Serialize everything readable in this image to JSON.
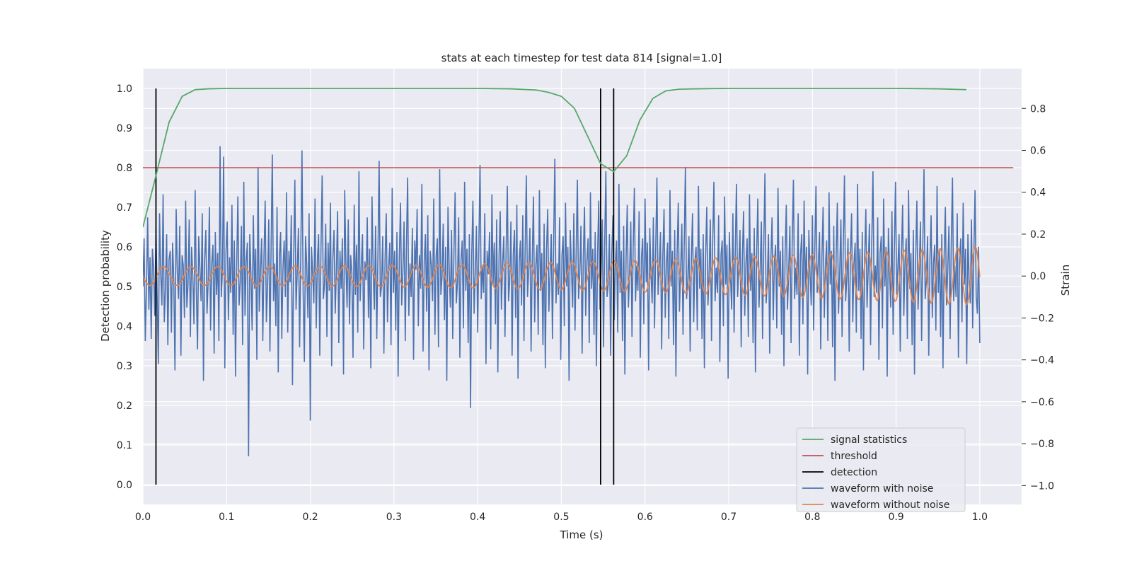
{
  "chart_data": {
    "type": "line",
    "title": "stats at each timestep for test data 814 [signal=1.0]",
    "xlabel": "Time (s)",
    "ylabel_left": "Detection probability",
    "ylabel_right": "Strain",
    "xlim": [
      0.0,
      1.05
    ],
    "ylim_left": [
      -0.05,
      1.05
    ],
    "ylim_right": [
      -1.09,
      0.99
    ],
    "x_ticks": [
      0.0,
      0.1,
      0.2,
      0.3,
      0.4,
      0.5,
      0.6,
      0.7,
      0.8,
      0.9,
      1.0
    ],
    "x_tick_labels": [
      "0.0",
      "0.1",
      "0.2",
      "0.3",
      "0.4",
      "0.5",
      "0.6",
      "0.7",
      "0.8",
      "0.9",
      "1.0"
    ],
    "y_left_ticks": [
      0.0,
      0.1,
      0.2,
      0.3,
      0.4,
      0.5,
      0.6,
      0.7,
      0.8,
      0.9,
      1.0
    ],
    "y_left_tick_labels": [
      "0.0",
      "0.1",
      "0.2",
      "0.3",
      "0.4",
      "0.5",
      "0.6",
      "0.7",
      "0.8",
      "0.9",
      "1.0"
    ],
    "y_right_ticks": [
      -1.0,
      -0.8,
      -0.6,
      -0.4,
      -0.2,
      0.0,
      0.2,
      0.4,
      0.6,
      0.8
    ],
    "y_right_tick_labels": [
      "−1.0",
      "−0.8",
      "−0.6",
      "−0.4",
      "−0.2",
      "0.0",
      "0.2",
      "0.4",
      "0.6",
      "0.8"
    ],
    "grid": true,
    "legend_position": "lower-right",
    "colors": {
      "background": "#eaeaf2",
      "grid": "#ffffff",
      "signal_statistics": "#55a868",
      "threshold": "#c44e52",
      "detection": "#000000",
      "waveform_noise": "#4c72b0",
      "waveform_clean": "#dd8452"
    },
    "legend": [
      {
        "label": "signal statistics",
        "color": "#55a868"
      },
      {
        "label": "threshold",
        "color": "#c44e52"
      },
      {
        "label": "detection",
        "color": "#000000"
      },
      {
        "label": "waveform with noise",
        "color": "#4c72b0"
      },
      {
        "label": "waveform without noise",
        "color": "#dd8452"
      }
    ],
    "signal_statistics": {
      "name": "signal statistics",
      "axis": "left",
      "x": [
        0.0,
        0.0156,
        0.0313,
        0.0469,
        0.0625,
        0.0781,
        0.1,
        0.2,
        0.3,
        0.4,
        0.44,
        0.47,
        0.485,
        0.5,
        0.5156,
        0.5313,
        0.5469,
        0.5625,
        0.5781,
        0.5938,
        0.6094,
        0.625,
        0.64,
        0.66,
        0.7,
        0.8,
        0.9,
        0.95,
        0.984
      ],
      "y": [
        0.65,
        0.78,
        0.915,
        0.98,
        0.997,
        0.999,
        1.0,
        1.0,
        1.0,
        1.0,
        0.999,
        0.996,
        0.99,
        0.98,
        0.95,
        0.88,
        0.81,
        0.79,
        0.83,
        0.92,
        0.975,
        0.994,
        0.998,
        0.999,
        1.0,
        1.0,
        1.0,
        0.999,
        0.997
      ]
    },
    "threshold": {
      "name": "threshold",
      "axis": "left",
      "y": 0.8,
      "x_range": [
        0.0,
        1.04
      ]
    },
    "detections": {
      "name": "detection",
      "axis": "left",
      "x": [
        0.0156,
        0.5469,
        0.5625
      ],
      "y_range": [
        0.0,
        1.0
      ]
    },
    "waveform_with_noise": {
      "name": "waveform with noise",
      "axis": "right",
      "x_range": [
        0.0,
        1.0
      ],
      "y": [
        -0.05,
        0.18,
        -0.31,
        -0.05,
        0.28,
        -0.16,
        0.09,
        -0.3,
        0.13,
        0.03,
        -0.19,
        0.23,
        -0.1,
        -0.42,
        0.3,
        0.01,
        -0.14,
        0.39,
        -0.22,
        -0.06,
        0.2,
        -0.33,
        0.08,
        0.12,
        -0.27,
        0.16,
        -0.02,
        -0.45,
        0.32,
        0.02,
        -0.11,
        0.24,
        -0.38,
        0.1,
        0.05,
        -0.2,
        0.36,
        -0.15,
        -0.04,
        0.27,
        -0.29,
        0.14,
        0.0,
        -0.23,
        0.41,
        -0.07,
        -0.35,
        0.19,
        0.04,
        -0.12,
        0.3,
        -0.5,
        0.08,
        0.22,
        -0.18,
        -0.02,
        0.33,
        -0.26,
        0.06,
        0.15,
        -0.37,
        0.21,
        -0.09,
        0.11,
        -0.31,
        0.62,
        -0.1,
        0.03,
        0.57,
        -0.44,
        0.12,
        0.26,
        -0.21,
        0.09,
        -0.08,
        0.34,
        -0.28,
        0.17,
        -0.48,
        0.05,
        0.38,
        -0.14,
        -0.03,
        0.24,
        -0.33,
        0.45,
        -0.19,
        0.07,
        0.16,
        -0.86,
        0.2,
        0.01,
        -0.26,
        0.29,
        -0.06,
        0.13,
        -0.4,
        0.52,
        -0.17,
        0.02,
        0.18,
        -0.31,
        0.1,
        0.36,
        -0.22,
        -0.05,
        0.27,
        -0.36,
        0.14,
        0.58,
        -0.12,
        0.06,
        -0.24,
        0.33,
        -0.46,
        0.09,
        0.21,
        -0.3,
        0.04,
        0.17,
        -0.1,
        0.4,
        -0.27,
        0.12,
        -0.03,
        0.29,
        -0.52,
        0.08,
        0.46,
        -0.16,
        0.02,
        0.23,
        -0.34,
        0.11,
        0.6,
        -0.08,
        -0.41,
        0.19,
        0.05,
        -0.2,
        0.3,
        -0.69,
        0.14,
        0.01,
        -0.13,
        0.37,
        -0.25,
        0.07,
        0.2,
        -0.38,
        0.13,
        0.48,
        -0.11,
        -0.04,
        0.25,
        -0.29,
        0.16,
        -0.07,
        0.35,
        -0.43,
        0.09,
        0.22,
        -0.18,
        0.03,
        0.31,
        -0.32,
        0.12,
        -0.06,
        0.18,
        -0.47,
        0.41,
        0.06,
        -0.15,
        0.27,
        -0.23,
        0.1,
        0.02,
        -0.39,
        0.34,
        -0.09,
        0.15,
        -0.27,
        0.5,
        -0.12,
        0.05,
        0.2,
        -0.35,
        0.07,
        -0.02,
        0.28,
        -0.2,
        0.13,
        -0.44,
        0.38,
        0.01,
        -0.16,
        0.24,
        -0.3,
        0.11,
        0.55,
        -0.1,
        -0.05,
        0.19,
        -0.37,
        0.08,
        0.3,
        -0.22,
        0.04,
        0.16,
        -0.33,
        0.42,
        -0.08,
        0.12,
        -0.26,
        0.21,
        -0.48,
        0.09,
        0.35,
        -0.14,
        0.02,
        0.26,
        -0.31,
        0.14,
        0.47,
        -0.19,
        0.06,
        -0.1,
        0.23,
        -0.4,
        0.17,
        0.03,
        0.32,
        -0.24,
        0.1,
        -0.06,
        0.44,
        -0.36,
        0.07,
        0.2,
        -0.17,
        0.29,
        -0.45,
        0.12,
        0.05,
        -0.12,
        0.37,
        -0.28,
        0.09,
        0.18,
        -0.34,
        0.51,
        -0.09,
        0.0,
        0.25,
        -0.21,
        0.14,
        -0.5,
        0.33,
        0.04,
        -0.15,
        0.22,
        -0.3,
        0.11,
        0.4,
        -0.13,
        -0.03,
        0.28,
        -0.39,
        0.08,
        0.17,
        -0.25,
        0.45,
        -0.07,
        0.13,
        -0.32,
        0.2,
        -0.63,
        0.1,
        0.36,
        -0.18,
        0.02,
        0.24,
        -0.27,
        0.15,
        0.53,
        -0.11,
        0.05,
        -0.08,
        0.3,
        -0.42,
        0.12,
        0.01,
        0.21,
        -0.35,
        0.39,
        -0.04,
        0.16,
        -0.23,
        0.27,
        -0.46,
        0.09,
        0.31,
        -0.16,
        0.06,
        0.19,
        -0.29,
        0.14,
        0.43,
        -0.12,
        -0.02,
        0.26,
        -0.38,
        0.1,
        0.22,
        -0.2,
        0.34,
        -0.49,
        0.07,
        0.17,
        -0.14,
        0.29,
        -0.31,
        0.13,
        0.48,
        -0.1,
        0.03,
        0.23,
        -0.36,
        0.08,
        0.38,
        -0.22,
        0.05,
        0.15,
        -0.28,
        0.41,
        -0.07,
        0.11,
        -0.33,
        0.25,
        -0.44,
        0.12,
        0.32,
        -0.17,
        0.02,
        0.2,
        -0.3,
        0.16,
        0.56,
        -0.13,
        0.06,
        -0.09,
        0.28,
        -0.4,
        0.1,
        0.19,
        -0.24,
        0.35,
        -0.05,
        0.14,
        -0.5,
        0.22,
        0.04,
        -0.15,
        0.3,
        -0.26,
        0.12,
        0.46,
        -0.11,
        0.01,
        0.24,
        -0.37,
        0.09,
        0.33,
        -0.19,
        0.07,
        0.18,
        -0.32,
        0.4,
        -0.06,
        0.13,
        -0.28,
        0.21,
        -0.43,
        0.1,
        0.36,
        -0.16,
        0.03,
        0.27,
        -0.34,
        0.15,
        0.5,
        -0.1,
        -0.04,
        0.2,
        -0.38,
        0.11,
        0.29,
        -0.21,
        0.06,
        0.17,
        -0.27,
        0.44,
        -0.08,
        0.12,
        -0.31,
        0.24,
        -0.47,
        0.08,
        0.34,
        -0.15,
        0.02,
        0.26,
        -0.29,
        0.14,
        0.42,
        -0.12,
        0.05,
        -0.07,
        0.31,
        -0.39,
        0.09,
        0.18,
        -0.23,
        0.37,
        -0.03,
        0.16,
        -0.45,
        0.23,
        0.01,
        -0.13,
        0.28,
        -0.25,
        0.13,
        0.47,
        -0.09,
        0.04,
        0.21,
        -0.35,
        0.1,
        0.32,
        -0.2,
        0.06,
        0.16,
        -0.3,
        0.41,
        -0.05,
        0.12,
        -0.33,
        0.22,
        -0.48,
        0.11,
        0.35,
        -0.17,
        0.03,
        0.25,
        -0.28,
        0.15,
        0.52,
        -0.11,
        -0.02,
        0.19,
        -0.36,
        0.08,
        0.3,
        -0.22,
        0.07,
        0.14,
        -0.26,
        0.43,
        -0.06,
        0.13,
        -0.3,
        0.2,
        -0.44,
        0.09,
        0.33,
        -0.14,
        0.02,
        0.27,
        -0.31,
        0.16,
        0.45,
        -0.12,
        0.04,
        -0.08,
        0.29,
        -0.41,
        0.1,
        0.17,
        -0.24,
        0.38,
        -0.04,
        0.15,
        -0.49,
        0.21,
        0.0,
        -0.16,
        0.3,
        -0.27,
        0.12,
        0.44,
        -0.1,
        0.05,
        0.22,
        -0.34,
        0.09,
        0.31,
        -0.19,
        0.06,
        0.18,
        -0.29,
        0.39,
        -0.07,
        0.11,
        -0.32,
        0.23,
        -0.46,
        0.1,
        0.37,
        -0.15,
        0.03,
        0.26,
        -0.3,
        0.14,
        0.49,
        -0.13,
        -0.03,
        0.2,
        -0.37,
        0.08,
        0.28,
        -0.21,
        0.07,
        0.15,
        -0.25,
        0.42,
        -0.05,
        0.12,
        -0.28,
        0.19,
        -0.43,
        0.11,
        0.34,
        -0.16,
        0.02,
        0.24,
        -0.32,
        0.17,
        0.46,
        -0.11,
        0.04,
        -0.09,
        0.3,
        -0.38,
        0.1,
        0.2,
        -0.23,
        0.36,
        -0.06,
        0.14,
        -0.47,
        0.22,
        0.01,
        -0.14,
        0.29,
        -0.26,
        0.13,
        0.43,
        -0.08,
        0.06,
        0.21,
        -0.35,
        0.09,
        0.33,
        -0.2,
        0.05,
        0.17,
        -0.31,
        0.4,
        -0.04,
        0.12,
        -0.34,
        0.24,
        -0.5,
        0.1,
        0.35,
        -0.18,
        0.02,
        0.27,
        -0.29,
        0.15,
        0.48,
        -0.12,
        -0.01,
        0.18,
        -0.36,
        0.09,
        0.3,
        -0.22,
        0.06,
        0.16,
        -0.27,
        0.44,
        -0.07,
        0.13,
        -0.3,
        0.21,
        -0.45,
        0.08,
        0.32,
        -0.15,
        0.03,
        0.25,
        -0.33,
        0.16,
        0.5,
        -0.1,
        0.05,
        -0.08,
        0.28,
        -0.4,
        0.11,
        0.19,
        -0.25,
        0.37,
        -0.05,
        0.14,
        -0.48,
        0.23,
        0.02,
        -0.15,
        0.31,
        -0.28,
        0.12,
        0.45,
        -0.09,
        0.04,
        0.2,
        -0.36,
        0.1,
        0.34,
        -0.19,
        0.07,
        0.18,
        -0.3,
        0.41,
        -0.06,
        0.11,
        -0.33,
        0.22,
        -0.47,
        0.09,
        0.36,
        -0.16,
        0.01,
        0.26,
        -0.31,
        0.15,
        0.51,
        -0.11,
        -0.02,
        0.19,
        -0.38,
        0.08,
        0.29,
        -0.2,
        0.06,
        0.15,
        -0.26,
        0.43,
        -0.08,
        0.12,
        -0.29,
        0.2,
        -0.44,
        0.1,
        0.33,
        -0.14,
        0.03,
        0.24,
        -0.3,
        0.17,
        0.47,
        -0.12,
        0.05,
        -0.1,
        0.3,
        -0.39,
        0.09,
        0.18,
        -0.22,
        0.35,
        -0.04,
        0.13,
        -0.42,
        0.2,
        -0.02,
        -0.13,
        0.27,
        -0.25,
        0.11,
        0.41,
        -0.1,
        -0.18,
        0.14,
        -0.32
      ]
    },
    "waveform_without_noise": {
      "name": "waveform without noise",
      "axis": "right",
      "x_range": [
        0.0,
        1.0
      ],
      "f0": 30,
      "f1": 48,
      "a0": 0.045,
      "a1": 0.14
    }
  }
}
